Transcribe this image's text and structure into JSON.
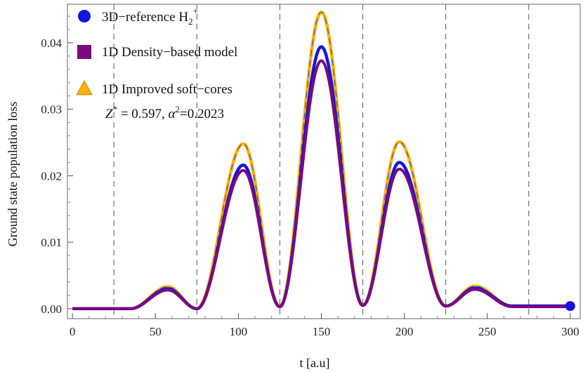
{
  "chart_data": {
    "type": "line",
    "title": "",
    "xlabel": "t  [a.u]",
    "ylabel": "Ground  state  population  loss",
    "xlim": [
      -3,
      306
    ],
    "ylim": [
      -0.0015,
      0.0458
    ],
    "xticks": [
      0,
      50,
      100,
      150,
      200,
      250,
      300
    ],
    "xtick_labels": [
      "0",
      "50",
      "100",
      "150",
      "200",
      "250",
      "300"
    ],
    "yticks": [
      0.0,
      0.01,
      0.02,
      0.03,
      0.04
    ],
    "ytick_labels": [
      "0.00",
      "0.01",
      "0.02",
      "0.03",
      "0.04"
    ],
    "vlines": [
      25,
      75,
      125,
      175,
      225,
      275
    ],
    "grid": false,
    "legend_position": "top-left",
    "annotation": "Z* = 0.597, α²=0.2023",
    "series": [
      {
        "name": "3D−reference H₂⁺",
        "legend_label": "3D−reference H",
        "legend_sub": "2",
        "legend_sup": "+",
        "color": "#1515e0",
        "marker": "circle",
        "peaks": [
          {
            "t": 57.5,
            "y": 0.003
          },
          {
            "t": 103,
            "y": 0.0216
          },
          {
            "t": 150,
            "y": 0.0394
          },
          {
            "t": 197,
            "y": 0.022
          },
          {
            "t": 242.5,
            "y": 0.0031
          }
        ],
        "minima": [
          {
            "t": 75,
            "y": 0.0
          },
          {
            "t": 125,
            "y": 0.0003
          },
          {
            "t": 175,
            "y": 0.0005
          },
          {
            "t": 225,
            "y": 0.0004
          }
        ],
        "start_value": 0.0,
        "end_value": 0.0004
      },
      {
        "name": "1D Density−based model",
        "legend_label": "1D Density−based model",
        "color": "#7b0a7b",
        "marker": "square",
        "peaks": [
          {
            "t": 57.5,
            "y": 0.0028
          },
          {
            "t": 103,
            "y": 0.0208
          },
          {
            "t": 150,
            "y": 0.0373
          },
          {
            "t": 197,
            "y": 0.021
          },
          {
            "t": 242.5,
            "y": 0.0029
          }
        ],
        "minima": [
          {
            "t": 75,
            "y": 0.0
          },
          {
            "t": 125,
            "y": 0.0003
          },
          {
            "t": 175,
            "y": 0.0005
          },
          {
            "t": 225,
            "y": 0.0004
          }
        ],
        "start_value": 0.0,
        "end_value": 0.0003
      },
      {
        "name": "1D Improved soft−cores",
        "legend_label": "1D Improved soft−cores",
        "color": "#ffb000",
        "marker": "triangle",
        "peaks": [
          {
            "t": 57.5,
            "y": 0.0033
          },
          {
            "t": 103,
            "y": 0.0248
          },
          {
            "t": 150,
            "y": 0.0446
          },
          {
            "t": 197,
            "y": 0.0251
          },
          {
            "t": 242.5,
            "y": 0.0034
          }
        ],
        "minima": [
          {
            "t": 75,
            "y": 0.0
          },
          {
            "t": 125,
            "y": 0.0003
          },
          {
            "t": 175,
            "y": 0.0005
          },
          {
            "t": 225,
            "y": 0.0004
          }
        ],
        "start_value": 0.0,
        "end_value": 0.0004
      }
    ]
  }
}
